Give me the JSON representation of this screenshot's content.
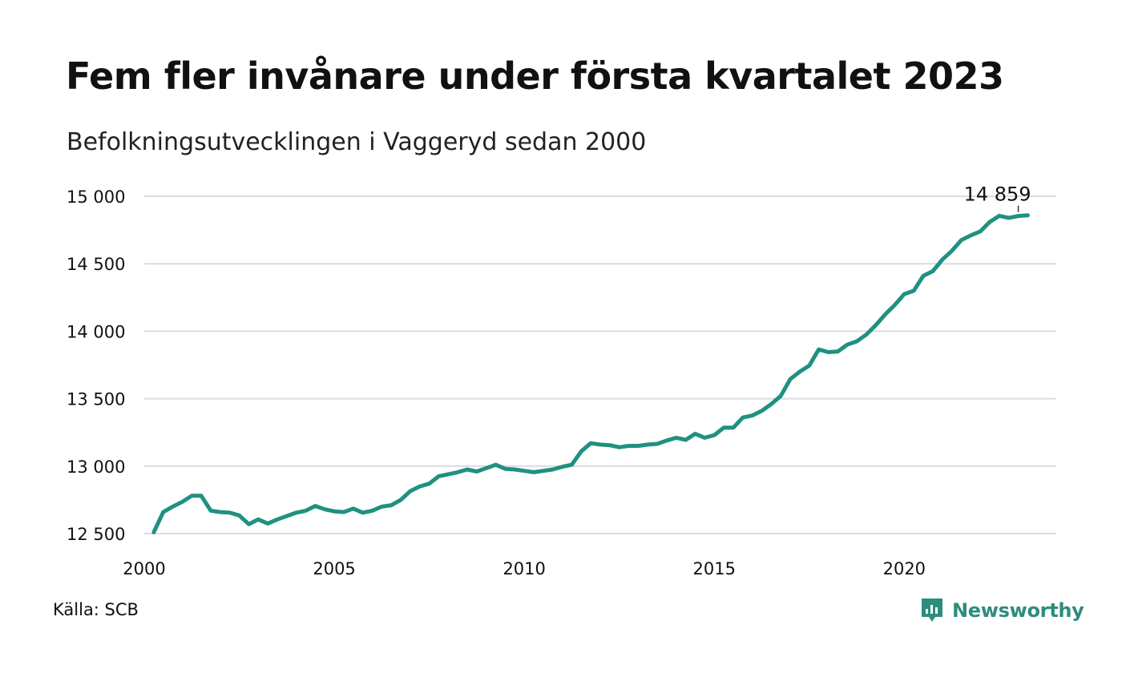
{
  "title": "Fem fler invånare under första kvartalet 2023",
  "subtitle": "Befolkningsutvecklingen i Vaggeryd sedan 2000",
  "source": "Källa: SCB",
  "brand": {
    "name": "Newsworthy",
    "color": "#2e8c7d"
  },
  "chart_data": {
    "type": "line",
    "title": "Fem fler invånare under första kvartalet 2023",
    "subtitle": "Befolkningsutvecklingen i Vaggeryd sedan 2000",
    "xlabel": "",
    "ylabel": "",
    "xlim": [
      2000,
      2024
    ],
    "ylim": [
      12500,
      15000
    ],
    "x_ticks": [
      2000,
      2005,
      2010,
      2015,
      2020
    ],
    "y_ticks": [
      12500,
      13000,
      13500,
      14000,
      14500,
      15000
    ],
    "y_tick_labels": [
      "12 500",
      "13 000",
      "13 500",
      "14 000",
      "14 500",
      "15 000"
    ],
    "grid": true,
    "line_color": "#1f9180",
    "annotation": {
      "text": "14 859",
      "x": 2023.0,
      "y": 14859
    },
    "series": [
      {
        "x": [
          2000.25,
          2000.5,
          2000.75,
          2001.0,
          2001.25,
          2001.5,
          2001.75,
          2002.0,
          2002.25,
          2002.5,
          2002.75,
          2003.0,
          2003.25,
          2003.5,
          2003.75,
          2004.0,
          2004.25,
          2004.5,
          2004.75,
          2005.0,
          2005.25,
          2005.5,
          2005.75,
          2006.0,
          2006.25,
          2006.5,
          2006.75,
          2007.0,
          2007.25,
          2007.5,
          2007.75,
          2008.0,
          2008.25,
          2008.5,
          2008.75,
          2009.0,
          2009.25,
          2009.5,
          2009.75,
          2010.0,
          2010.25,
          2010.5,
          2010.75,
          2011.0,
          2011.25,
          2011.5,
          2011.75,
          2012.0,
          2012.25,
          2012.5,
          2012.75,
          2013.0,
          2013.25,
          2013.5,
          2013.75,
          2014.0,
          2014.25,
          2014.5,
          2014.75,
          2015.0,
          2015.25,
          2015.5,
          2015.75,
          2016.0,
          2016.25,
          2016.5,
          2016.75,
          2017.0,
          2017.25,
          2017.5,
          2017.75,
          2018.0,
          2018.25,
          2018.5,
          2018.75,
          2019.0,
          2019.25,
          2019.5,
          2019.75,
          2020.0,
          2020.25,
          2020.5,
          2020.75,
          2021.0,
          2021.25,
          2021.5,
          2021.75,
          2022.0,
          2022.25,
          2022.5,
          2022.75,
          2023.0,
          2023.25
        ],
        "values": [
          12510,
          12660,
          12700,
          12735,
          12780,
          12780,
          12670,
          12660,
          12655,
          12635,
          12570,
          12605,
          12575,
          12605,
          12630,
          12655,
          12670,
          12705,
          12680,
          12665,
          12660,
          12685,
          12655,
          12670,
          12700,
          12710,
          12750,
          12815,
          12850,
          12870,
          12925,
          12940,
          12955,
          12975,
          12960,
          12985,
          13010,
          12980,
          12975,
          12965,
          12955,
          12965,
          12975,
          12995,
          13010,
          13110,
          13170,
          13160,
          13155,
          13140,
          13150,
          13150,
          13160,
          13165,
          13190,
          13210,
          13195,
          13240,
          13210,
          13230,
          13285,
          13285,
          13360,
          13375,
          13410,
          13460,
          13520,
          13645,
          13700,
          13745,
          13865,
          13845,
          13850,
          13900,
          13925,
          13975,
          14045,
          14125,
          14195,
          14275,
          14300,
          14410,
          14445,
          14530,
          14595,
          14675,
          14710,
          14740,
          14810,
          14855,
          14840,
          14854,
          14859
        ]
      }
    ]
  }
}
